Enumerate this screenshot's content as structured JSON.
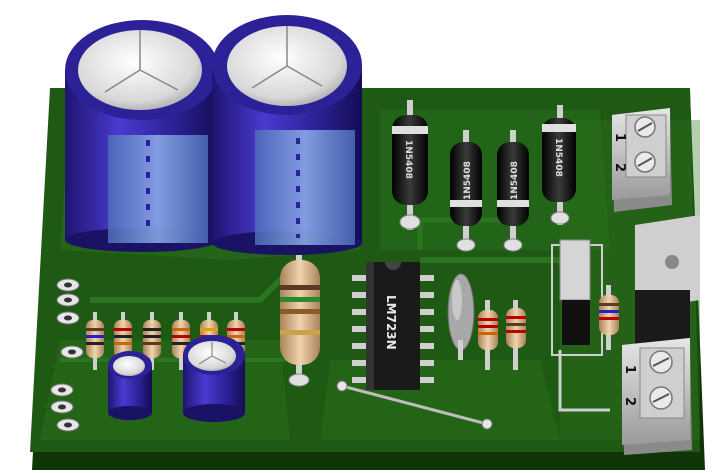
{
  "colors": {
    "background": "#ffffff",
    "board": "#1f5a14",
    "board_edge": "#0f3508",
    "trace": "#2c7a1d",
    "cap_body": "#3a2bb0",
    "cap_sleeve": "#6d8fd6",
    "silver": "#d8d8d8",
    "ic_body": "#1a1a1a",
    "diode_body": "#111111",
    "resistor_body": "#d8b48a",
    "terminal": "#bdbdbd"
  },
  "labels": {
    "ic": "LM723N",
    "diode_1": "1N5408",
    "diode_2": "1N5408",
    "diode_3": "1N5408",
    "diode_4": "1N5408",
    "terminal_top_pin1": "1",
    "terminal_top_pin2": "2",
    "terminal_bottom_pin1": "1",
    "terminal_bottom_pin2": "2"
  },
  "icons": [
    "pcb-board",
    "electrolytic-capacitor",
    "diode",
    "resistor",
    "dip-ic",
    "screw-terminal",
    "voltage-regulator",
    "film-capacitor"
  ]
}
